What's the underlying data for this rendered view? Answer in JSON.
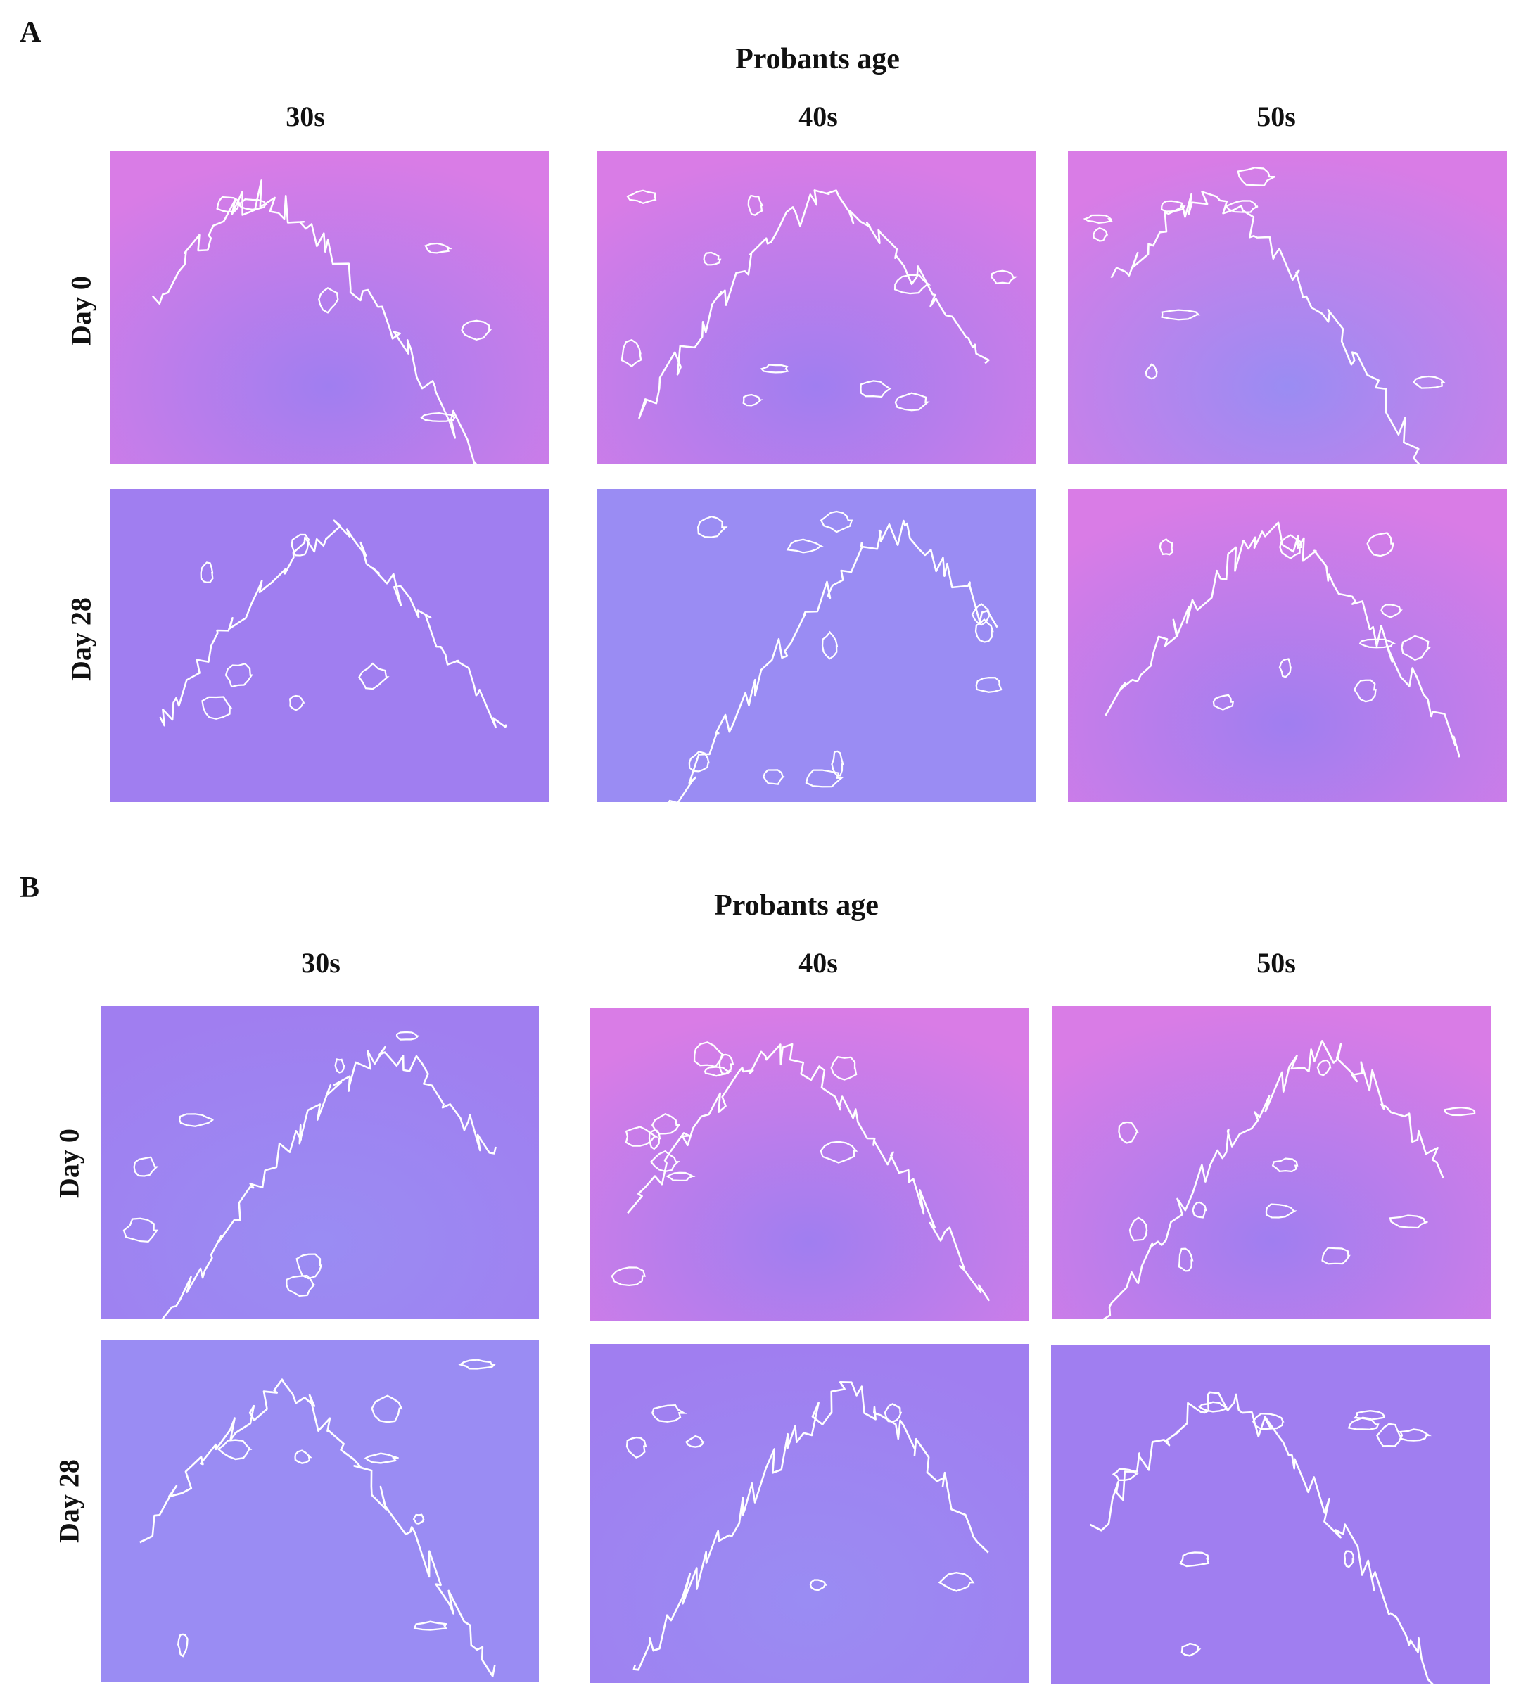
{
  "panels": [
    {
      "letter": "A",
      "heading": "Probants age",
      "columns": [
        "30s",
        "40s",
        "50s"
      ],
      "rows": [
        "Day 0",
        "Day 28"
      ]
    },
    {
      "letter": "B",
      "heading": "Probants age",
      "columns": [
        "30s",
        "40s",
        "50s"
      ],
      "rows": [
        "Day 0",
        "Day 28"
      ]
    }
  ],
  "colors": {
    "pink": "#d97ce6",
    "violet": "#a07ef0",
    "blue": "#9a8cf3",
    "outline": "#ffffff"
  }
}
